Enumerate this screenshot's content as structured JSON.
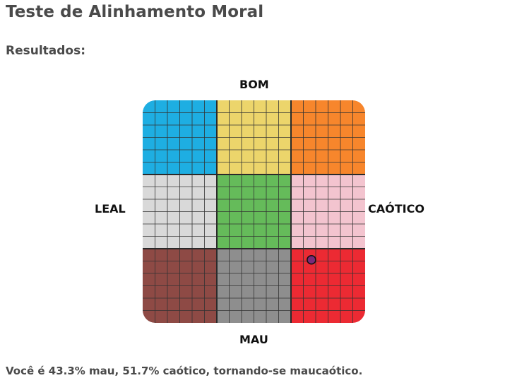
{
  "page": {
    "title": "Teste de Alinhamento Moral",
    "results_heading": "Resultados:"
  },
  "axes": {
    "top": "BOM",
    "bottom": "MAU",
    "left": "LEAL",
    "right": "CAÓTICO"
  },
  "alignment_grid": {
    "cells": [
      {
        "name": "lawful-good",
        "color": "#1eaee2"
      },
      {
        "name": "neutral-good",
        "color": "#ecd56b"
      },
      {
        "name": "chaotic-good",
        "color": "#f7862c"
      },
      {
        "name": "lawful-neutral",
        "color": "#d9d9d9"
      },
      {
        "name": "true-neutral",
        "color": "#65bb5a"
      },
      {
        "name": "chaotic-neutral",
        "color": "#f3c4cf"
      },
      {
        "name": "lawful-evil",
        "color": "#8e4a45"
      },
      {
        "name": "neutral-evil",
        "color": "#8e8e8e"
      },
      {
        "name": "chaotic-evil",
        "color": "#ec2a33"
      }
    ],
    "marker": {
      "evil_percent": 43.3,
      "chaotic_percent": 51.7,
      "color": "#7a2a7a"
    }
  },
  "result": {
    "sentence": "Você é 43.3% mau, 51.7% caótico, tornando-se maucaótico."
  }
}
